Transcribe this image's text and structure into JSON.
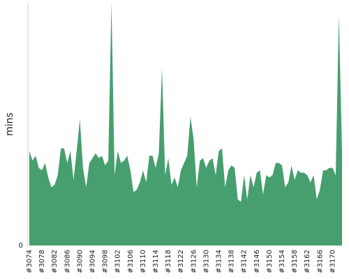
{
  "chart_data": {
    "type": "area",
    "ylabel": "mins",
    "categories": [
      "#3074",
      null,
      null,
      null,
      "#3078",
      null,
      null,
      null,
      "#3082",
      null,
      null,
      null,
      "#3086",
      null,
      null,
      null,
      "#3090",
      null,
      null,
      null,
      "#3094",
      null,
      null,
      null,
      "#3098",
      null,
      null,
      null,
      "#3102",
      null,
      null,
      null,
      "#3106",
      null,
      null,
      null,
      "#3110",
      null,
      null,
      null,
      "#3114",
      null,
      null,
      null,
      "#3118",
      null,
      null,
      null,
      "#3122",
      null,
      null,
      null,
      "#3126",
      null,
      null,
      null,
      "#3130",
      null,
      null,
      null,
      "#3134",
      null,
      null,
      null,
      "#3138",
      null,
      null,
      null,
      "#3142",
      null,
      null,
      null,
      "#3146",
      null,
      null,
      null,
      "#3150",
      null,
      null,
      null,
      "#3154",
      null,
      null,
      null,
      "#3158",
      null,
      null,
      null,
      "#3162",
      null,
      null,
      null,
      "#3166",
      null,
      null,
      null,
      "#3170",
      null,
      null,
      null
    ],
    "values": [
      39,
      35,
      37,
      32,
      31,
      34,
      28,
      24,
      25,
      29,
      40,
      40,
      34,
      39,
      27,
      39,
      52,
      32,
      24,
      34,
      36,
      38,
      36,
      37,
      33,
      35,
      100,
      29,
      39,
      34,
      35,
      37,
      31,
      22,
      23,
      26,
      31,
      26,
      37,
      37,
      32,
      38,
      73,
      29,
      36,
      25,
      28,
      24,
      31,
      34,
      37,
      53,
      44,
      24,
      35,
      36,
      32,
      35,
      36,
      29,
      39,
      40,
      24,
      31,
      33,
      32,
      19,
      18,
      29,
      19,
      29,
      24,
      30,
      31,
      21,
      29,
      28,
      29,
      34,
      34,
      33,
      24,
      26,
      33,
      27,
      31,
      30,
      30,
      29,
      26,
      29,
      19,
      23,
      31,
      31,
      32,
      32,
      29,
      95,
      39
    ],
    "color": "#479f6f",
    "ylim": [
      0,
      100
    ],
    "yticks": [
      0
    ]
  }
}
